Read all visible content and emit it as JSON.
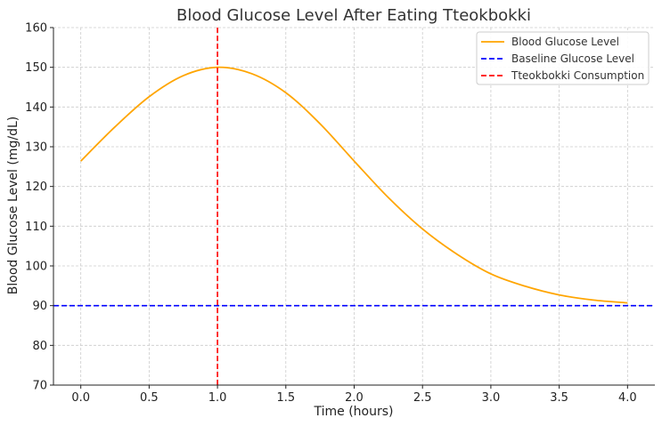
{
  "chart_data": {
    "type": "line",
    "title": "Blood Glucose Level After Eating Tteokbokki",
    "xlabel": "Time (hours)",
    "ylabel": "Blood Glucose Level (mg/dL)",
    "xlim": [
      -0.2,
      4.2
    ],
    "ylim": [
      70,
      160
    ],
    "xticks": [
      0.0,
      0.5,
      1.0,
      1.5,
      2.0,
      2.5,
      3.0,
      3.5,
      4.0
    ],
    "xtick_labels": [
      "0.0",
      "0.5",
      "1.0",
      "1.5",
      "2.0",
      "2.5",
      "3.0",
      "3.5",
      "4.0"
    ],
    "yticks": [
      70,
      80,
      90,
      100,
      110,
      120,
      130,
      140,
      150,
      160
    ],
    "ytick_labels": [
      "70",
      "80",
      "90",
      "100",
      "110",
      "120",
      "130",
      "140",
      "150",
      "160"
    ],
    "grid": true,
    "legend_position": "top-right",
    "series": [
      {
        "name": "Blood Glucose Level",
        "color": "#FFA500",
        "style": "solid",
        "x": [
          0.0,
          0.25,
          0.5,
          0.75,
          1.0,
          1.25,
          1.5,
          1.75,
          2.0,
          2.25,
          2.5,
          2.75,
          3.0,
          3.25,
          3.5,
          3.75,
          4.0
        ],
        "values": [
          126.4,
          135.0,
          142.6,
          147.9,
          150.0,
          148.4,
          143.6,
          135.8,
          126.4,
          117.2,
          109.3,
          103.0,
          98.0,
          94.9,
          92.7,
          91.4,
          90.7
        ]
      },
      {
        "name": "Baseline Glucose Level",
        "color": "#0000FF",
        "style": "dashed",
        "kind": "hline",
        "value": 90
      },
      {
        "name": "Tteokbokki Consumption",
        "color": "#FF0000",
        "style": "dashed",
        "kind": "vline",
        "value": 1.0
      }
    ]
  }
}
